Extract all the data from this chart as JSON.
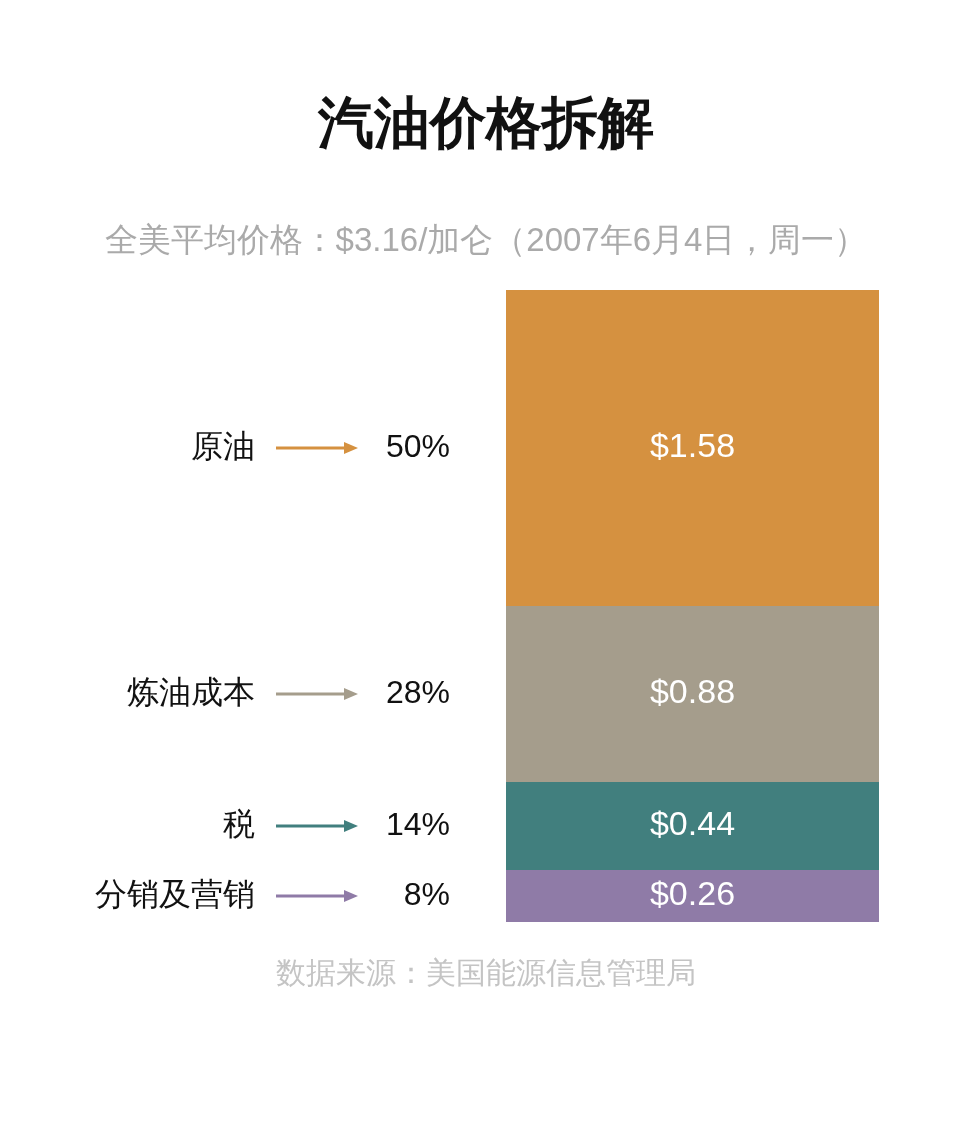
{
  "chart_data": {
    "type": "bar",
    "title": "汽油价格拆解",
    "subtitle": "全美平均价格：$3.16/加仑（2007年6月4日，周一）",
    "categories": [
      null
    ],
    "stacked": true,
    "legend": "left",
    "series": [
      {
        "name": "分销及营销",
        "color": "#8f7ba7",
        "values": [
          0.26
        ],
        "value_labels": [
          "$0.26"
        ]
      },
      {
        "name": "税",
        "color": "#417f7e",
        "values": [
          0.44
        ],
        "value_labels": [
          "$0.44"
        ]
      },
      {
        "name": "炼油成本",
        "color": "#a59d8c",
        "values": [
          0.88
        ],
        "value_labels": [
          "$0.88"
        ]
      },
      {
        "name": "原油",
        "color": "#d59140",
        "values": [
          1.58
        ],
        "value_labels": [
          "$1.58"
        ]
      }
    ],
    "annotations": [
      "8%",
      "14%",
      "28%",
      "50%",
      "数据来源：美国能源信息管理局"
    ]
  }
}
